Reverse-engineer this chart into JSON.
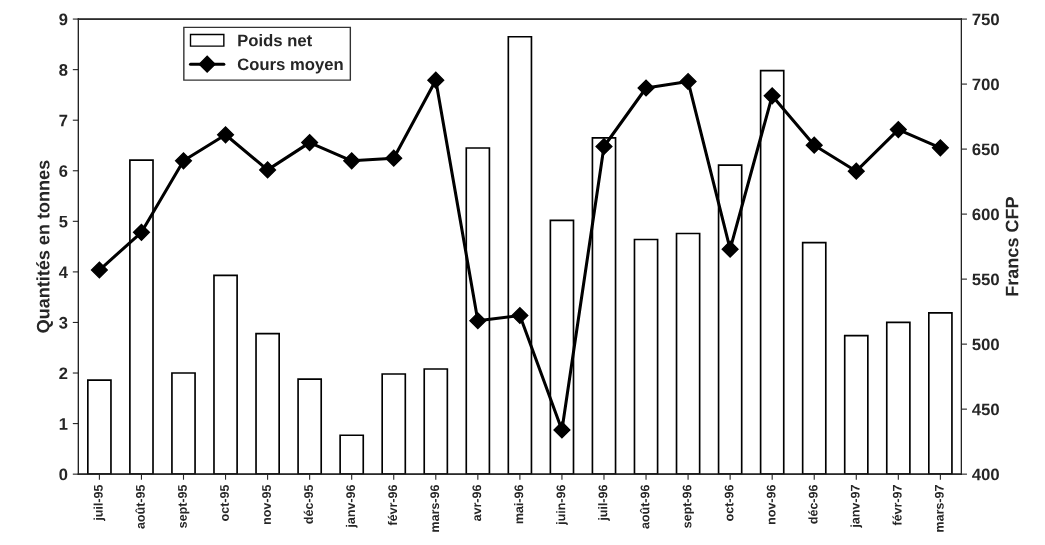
{
  "chart_data": {
    "type": "bar",
    "ylabel": "Quantités en tonnes",
    "y2label": "Francs CFP",
    "categories": [
      "juil-95",
      "août-95",
      "sept-95",
      "oct-95",
      "nov-95",
      "déc-95",
      "janv-96",
      "févr-96",
      "mars-96",
      "avr-96",
      "mai-96",
      "juin-96",
      "juil-96",
      "août-96",
      "sept-96",
      "oct-96",
      "nov-96",
      "déc-96",
      "janv-97",
      "févr-97",
      "mars-97"
    ],
    "series": [
      {
        "name": "Poids net",
        "color": "#ffffff",
        "values": [
          1.86,
          6.21,
          2.0,
          3.93,
          2.78,
          1.88,
          0.77,
          1.98,
          2.08,
          6.45,
          8.65,
          5.02,
          6.65,
          4.64,
          4.76,
          6.11,
          7.98,
          4.58,
          2.74,
          3.0,
          3.19
        ]
      },
      {
        "name": "Cours moyen",
        "type": "line",
        "axis": "y2",
        "color": "#000000",
        "marker": "diamond",
        "values": [
          557,
          586,
          641,
          661,
          634,
          655,
          641,
          643,
          703,
          518,
          522,
          434,
          652,
          697,
          702,
          573,
          691,
          653,
          633,
          665,
          651
        ]
      }
    ],
    "ylim": [
      0,
      9
    ],
    "yticks": [
      0,
      1,
      2,
      3,
      4,
      5,
      6,
      7,
      8,
      9
    ],
    "y2lim": [
      400,
      750
    ],
    "y2ticks": [
      400,
      450,
      500,
      550,
      600,
      650,
      700,
      750
    ],
    "legend": "top left",
    "grid": false
  }
}
